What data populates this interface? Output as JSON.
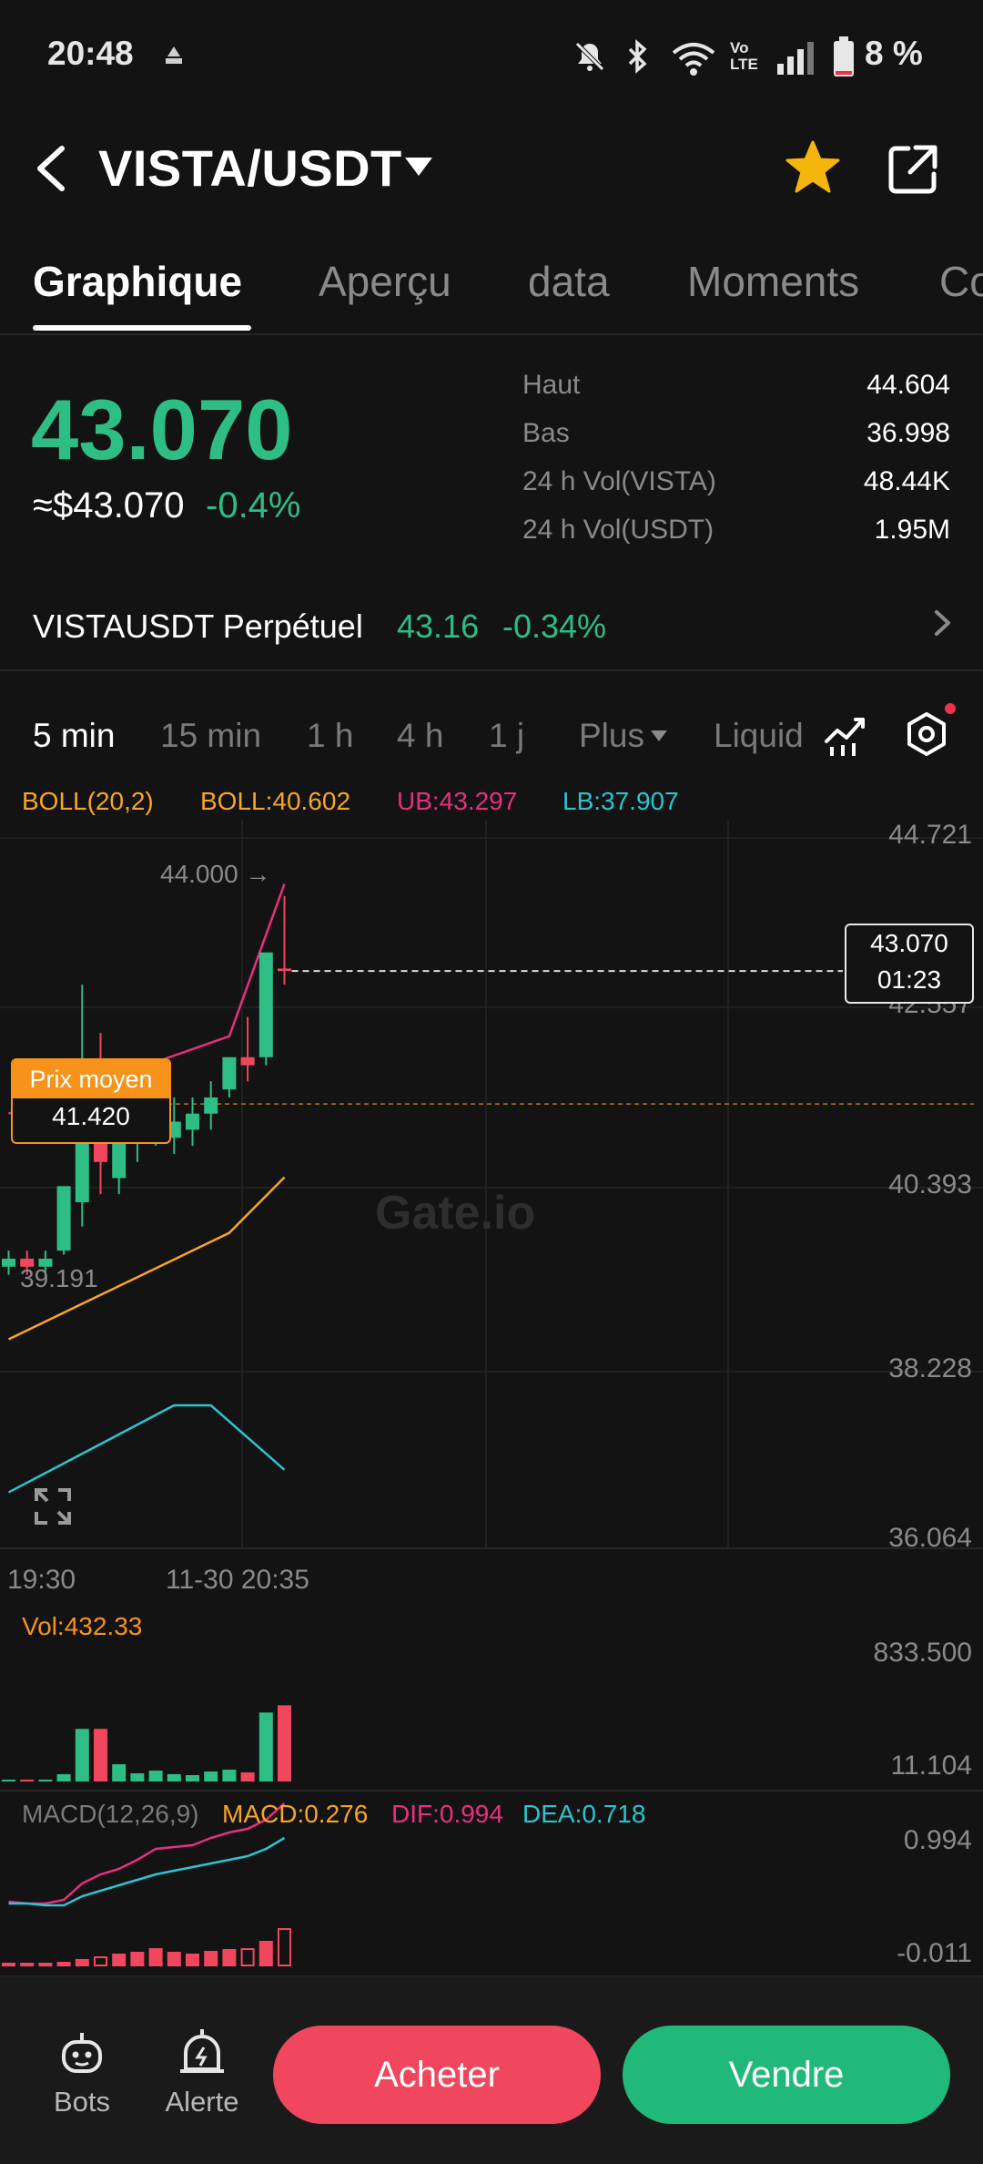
{
  "status_bar": {
    "time": "20:48",
    "battery": "8 %",
    "volte": "Vo LTE"
  },
  "header": {
    "pair": "VISTA/USDT"
  },
  "tabs": [
    {
      "label": "Graphique",
      "active": true
    },
    {
      "label": "Aperçu"
    },
    {
      "label": "data"
    },
    {
      "label": "Moments"
    },
    {
      "label": "Co"
    }
  ],
  "ticker": {
    "price": "43.070",
    "usd_price": "≈$43.070",
    "change": "-0.4%",
    "stats": [
      {
        "label": "Haut",
        "value": "44.604"
      },
      {
        "label": "Bas",
        "value": "36.998"
      },
      {
        "label": "24 h Vol(VISTA)",
        "value": "48.44K"
      },
      {
        "label": "24 h Vol(USDT)",
        "value": "1.95M"
      }
    ]
  },
  "perpetual": {
    "label": "VISTAUSDT Perpétuel",
    "price": "43.16",
    "change": "-0.34%"
  },
  "intervals": [
    {
      "label": "5 min",
      "active": true
    },
    {
      "label": "15 min"
    },
    {
      "label": "1 h"
    },
    {
      "label": "4 h"
    },
    {
      "label": "1 j"
    },
    {
      "label": "Plus"
    },
    {
      "label": "Liquid"
    }
  ],
  "boll_legend": {
    "name": "BOLL(20,2)",
    "boll": "BOLL:40.602",
    "ub": "UB:43.297",
    "lb": "LB:37.907"
  },
  "colors": {
    "up": "#2ebd85",
    "down": "#f0475e",
    "boll": "#f7a623",
    "ub": "#e7307e",
    "lb": "#2cc4d0"
  },
  "chart": {
    "y_ticks": [
      "44.721",
      "42.557",
      "40.393",
      "38.228",
      "36.064"
    ],
    "x_ticks": [
      "19:30",
      "11-30 20:35"
    ],
    "last_price": "43.070",
    "countdown": "01:23",
    "avg_title": "Prix moyen",
    "avg_value": "41.420",
    "max_label": "44.000 →",
    "min_label": "39.191",
    "watermark": "Gate.io"
  },
  "chart_data": {
    "type": "candlestick",
    "price_axis": [
      36.064,
      44.721
    ],
    "candles": [
      {
        "o": 39.4,
        "h": 39.6,
        "l": 39.3,
        "c": 39.5
      },
      {
        "o": 39.5,
        "h": 39.6,
        "l": 39.3,
        "c": 39.4
      },
      {
        "o": 39.4,
        "h": 39.6,
        "l": 39.3,
        "c": 39.5
      },
      {
        "o": 39.6,
        "h": 40.4,
        "l": 39.55,
        "c": 40.4
      },
      {
        "o": 40.2,
        "h": 42.9,
        "l": 39.9,
        "c": 41.0
      },
      {
        "o": 41.0,
        "h": 42.3,
        "l": 40.3,
        "c": 40.7
      },
      {
        "o": 40.5,
        "h": 41.3,
        "l": 40.3,
        "c": 41.2
      },
      {
        "o": 41.0,
        "h": 41.6,
        "l": 40.7,
        "c": 41.4
      },
      {
        "o": 41.0,
        "h": 41.4,
        "l": 40.9,
        "c": 41.2
      },
      {
        "o": 41.0,
        "h": 41.5,
        "l": 40.8,
        "c": 41.2
      },
      {
        "o": 41.1,
        "h": 41.5,
        "l": 40.9,
        "c": 41.3
      },
      {
        "o": 41.3,
        "h": 41.7,
        "l": 41.1,
        "c": 41.5
      },
      {
        "o": 41.6,
        "h": 42.0,
        "l": 41.5,
        "c": 42.0
      },
      {
        "o": 42.0,
        "h": 42.5,
        "l": 41.7,
        "c": 41.9
      },
      {
        "o": 42.0,
        "h": 43.3,
        "l": 41.9,
        "c": 43.3
      },
      {
        "o": 43.1,
        "h": 44.0,
        "l": 42.9,
        "c": 43.07
      }
    ],
    "volume_axis": [
      11.104,
      833.5
    ],
    "volume": [
      5,
      8,
      6,
      40,
      290,
      290,
      95,
      45,
      60,
      40,
      35,
      55,
      65,
      50,
      380,
      420
    ],
    "vol_label": "Vol:432.33",
    "macd": {
      "name": "MACD(12,26,9)",
      "macd": "MACD:0.276",
      "dif": "DIF:0.994",
      "dea": "DEA:0.718",
      "axis": [
        "0.994",
        "-0.011"
      ]
    }
  },
  "bottom": {
    "bots": "Bots",
    "alert": "Alerte",
    "buy": "Acheter",
    "sell": "Vendre"
  }
}
